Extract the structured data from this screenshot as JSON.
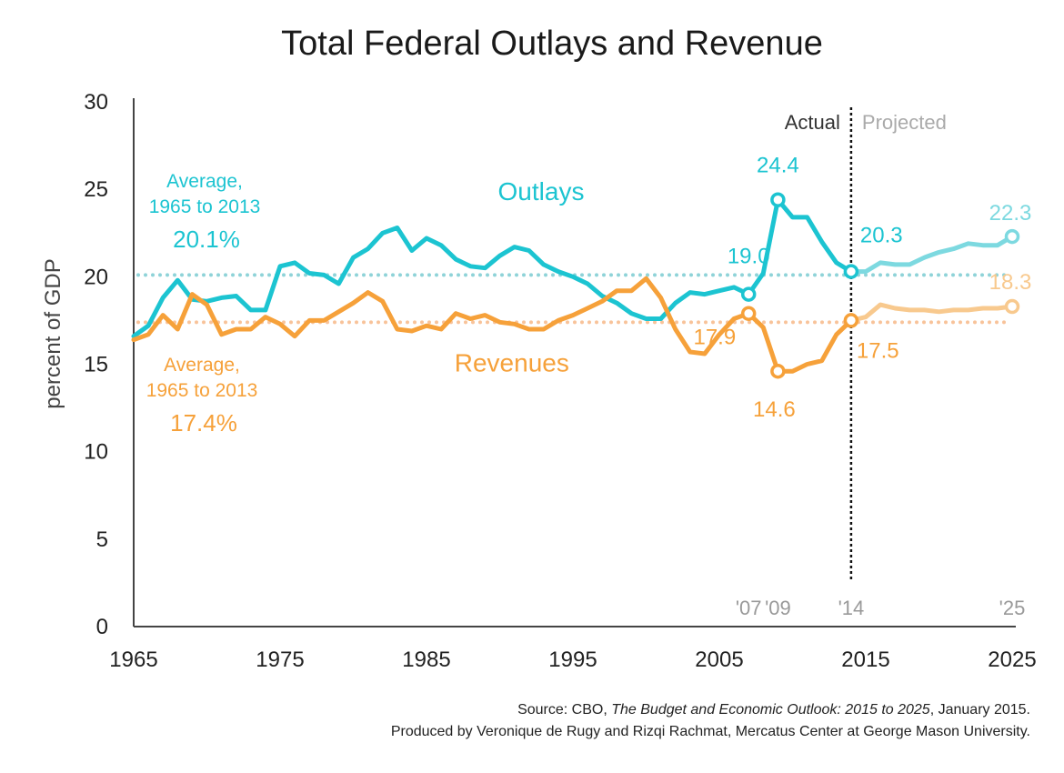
{
  "chart_data": {
    "type": "line",
    "title": "Total Federal Outlays and Revenue",
    "ylabel": "percent of GDP",
    "xlabel": "",
    "xlim": [
      1965,
      2025
    ],
    "ylim": [
      0,
      30
    ],
    "x_ticks": [
      "1965",
      "1975",
      "1985",
      "1995",
      "2005",
      "2015",
      "2025"
    ],
    "y_ticks": [
      "0",
      "5",
      "10",
      "15",
      "20",
      "25",
      "30"
    ],
    "grid": false,
    "actual_end_year": 2014,
    "actual_label": "Actual",
    "projected_label": "Projected",
    "colors": {
      "outlays": "#1cc4d1",
      "outlays_projected": "#7dd9e0",
      "revenues": "#f6a13a",
      "revenues_projected": "#f8c98e",
      "outlays_avg": "#8fd3d8",
      "revenues_avg": "#f8c39a",
      "axis": "#444444",
      "divider": "#111111",
      "year_marker": "#999999"
    },
    "series": [
      {
        "name": "Outlays",
        "key": "outlays",
        "x": [
          1965,
          1966,
          1967,
          1968,
          1969,
          1970,
          1971,
          1972,
          1973,
          1974,
          1975,
          1976,
          1977,
          1978,
          1979,
          1980,
          1981,
          1982,
          1983,
          1984,
          1985,
          1986,
          1987,
          1988,
          1989,
          1990,
          1991,
          1992,
          1993,
          1994,
          1995,
          1996,
          1997,
          1998,
          1999,
          2000,
          2001,
          2002,
          2003,
          2004,
          2005,
          2006,
          2007,
          2008,
          2009,
          2010,
          2011,
          2012,
          2013,
          2014
        ],
        "values": [
          16.6,
          17.2,
          18.8,
          19.8,
          18.7,
          18.6,
          18.8,
          18.9,
          18.1,
          18.1,
          20.6,
          20.8,
          20.2,
          20.1,
          19.6,
          21.1,
          21.6,
          22.5,
          22.8,
          21.5,
          22.2,
          21.8,
          21.0,
          20.6,
          20.5,
          21.2,
          21.7,
          21.5,
          20.7,
          20.3,
          20.0,
          19.6,
          18.9,
          18.5,
          17.9,
          17.6,
          17.6,
          18.5,
          19.1,
          19.0,
          19.2,
          19.4,
          19.0,
          20.2,
          24.4,
          23.4,
          23.4,
          22.0,
          20.8,
          20.3
        ],
        "projected_x": [
          2014,
          2015,
          2016,
          2017,
          2018,
          2019,
          2020,
          2021,
          2022,
          2023,
          2024,
          2025
        ],
        "projected_values": [
          20.3,
          20.3,
          20.8,
          20.7,
          20.7,
          21.1,
          21.4,
          21.6,
          21.9,
          21.8,
          21.8,
          22.3
        ]
      },
      {
        "name": "Revenues",
        "key": "revenues",
        "x": [
          1965,
          1966,
          1967,
          1968,
          1969,
          1970,
          1971,
          1972,
          1973,
          1974,
          1975,
          1976,
          1977,
          1978,
          1979,
          1980,
          1981,
          1982,
          1983,
          1984,
          1985,
          1986,
          1987,
          1988,
          1989,
          1990,
          1991,
          1992,
          1993,
          1994,
          1995,
          1996,
          1997,
          1998,
          1999,
          2000,
          2001,
          2002,
          2003,
          2004,
          2005,
          2006,
          2007,
          2008,
          2009,
          2010,
          2011,
          2012,
          2013,
          2014
        ],
        "values": [
          16.4,
          16.7,
          17.8,
          17.0,
          19.0,
          18.4,
          16.7,
          17.0,
          17.0,
          17.7,
          17.3,
          16.6,
          17.5,
          17.5,
          18.0,
          18.5,
          19.1,
          18.6,
          17.0,
          16.9,
          17.2,
          17.0,
          17.9,
          17.6,
          17.8,
          17.4,
          17.3,
          17.0,
          17.0,
          17.5,
          17.8,
          18.2,
          18.6,
          19.2,
          19.2,
          19.9,
          18.8,
          17.0,
          15.7,
          15.6,
          16.7,
          17.6,
          17.9,
          17.1,
          14.6,
          14.6,
          15.0,
          15.2,
          16.7,
          17.5
        ],
        "projected_x": [
          2014,
          2015,
          2016,
          2017,
          2018,
          2019,
          2020,
          2021,
          2022,
          2023,
          2024,
          2025
        ],
        "projected_values": [
          17.5,
          17.7,
          18.4,
          18.2,
          18.1,
          18.1,
          18.0,
          18.1,
          18.1,
          18.2,
          18.2,
          18.3
        ]
      }
    ],
    "averages": [
      {
        "key": "outlays",
        "value": 20.1,
        "label_line1": "Average,",
        "label_line2": "1965 to 2013",
        "value_label": "20.1%"
      },
      {
        "key": "revenues",
        "value": 17.4,
        "label_line1": "Average,",
        "label_line2": "1965 to 2013",
        "value_label": "17.4%"
      }
    ],
    "series_labels": [
      {
        "key": "outlays",
        "text": "Outlays",
        "x": 1995,
        "y": 24.8
      },
      {
        "key": "revenues",
        "text": "Revenues",
        "x": 1993,
        "y": 15.0
      }
    ],
    "point_annotations": [
      {
        "key": "outlays",
        "x": 2007,
        "y": 19.0,
        "text": "19.0"
      },
      {
        "key": "outlays",
        "x": 2009,
        "y": 24.4,
        "text": "24.4"
      },
      {
        "key": "outlays",
        "x": 2014,
        "y": 20.3,
        "text": "20.3"
      },
      {
        "key": "outlays",
        "x": 2025,
        "y": 22.3,
        "text": "22.3"
      },
      {
        "key": "revenues",
        "x": 2007,
        "y": 17.9,
        "text": "17.9"
      },
      {
        "key": "revenues",
        "x": 2009,
        "y": 14.6,
        "text": "14.6"
      },
      {
        "key": "revenues",
        "x": 2014,
        "y": 17.5,
        "text": "17.5"
      },
      {
        "key": "revenues",
        "x": 2025,
        "y": 18.3,
        "text": "18.3"
      }
    ],
    "year_markers": [
      {
        "x": 2007,
        "text": "'07"
      },
      {
        "x": 2009,
        "text": "'09"
      },
      {
        "x": 2014,
        "text": "'14"
      },
      {
        "x": 2025,
        "text": "'25"
      }
    ]
  },
  "source": {
    "prefix": "Source: CBO, ",
    "publication": "The Budget and Economic Outlook: 2015 to 2025",
    "suffix": ", January 2015.",
    "credit": "Produced by Veronique de Rugy and Rizqi Rachmat, Mercatus Center at George Mason University."
  }
}
